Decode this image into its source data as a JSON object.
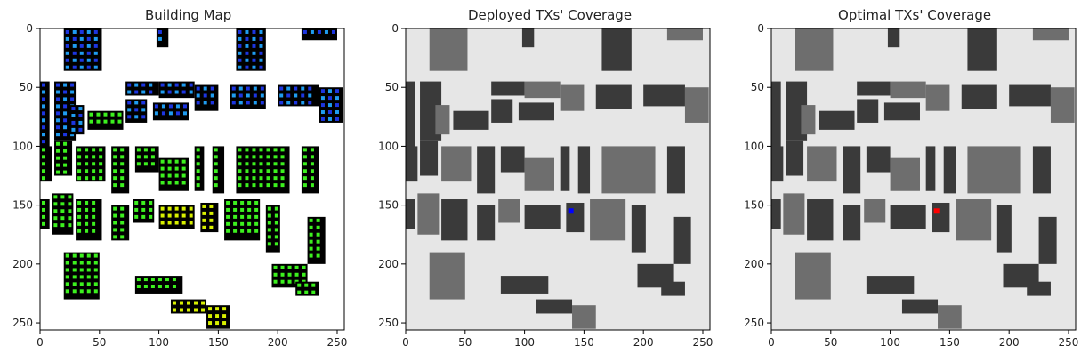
{
  "chart_data": [
    {
      "type": "heatmap",
      "title": "Building Map",
      "xlim": [
        0,
        255
      ],
      "ylim": [
        0,
        255
      ],
      "xticks": [
        0,
        50,
        100,
        150,
        200,
        250
      ],
      "yticks": [
        0,
        50,
        100,
        150,
        200,
        250
      ],
      "colors": {
        "background": "#ffffff",
        "building": "#000000",
        "marker_green": "#3cf01e",
        "marker_blue": "#1f9cf0",
        "marker_darkblue": "#1c35e0",
        "marker_yellow": "#d8f000"
      }
    },
    {
      "type": "heatmap",
      "title": "Deployed TXs' Coverage",
      "xlim": [
        0,
        255
      ],
      "ylim": [
        0,
        255
      ],
      "xticks": [
        0,
        50,
        100,
        150,
        200,
        250
      ],
      "yticks": [
        0,
        50,
        100,
        150,
        200,
        250
      ],
      "tx": [
        {
          "x": 139,
          "y": 155,
          "color": "#0000ff"
        }
      ],
      "colors": {
        "background": "#e6e6e6",
        "building_dark": "#3a3a3a",
        "building_mid": "#6e6e6e"
      }
    },
    {
      "type": "heatmap",
      "title": "Optimal TXs' Coverage",
      "xlim": [
        0,
        255
      ],
      "ylim": [
        0,
        255
      ],
      "xticks": [
        0,
        50,
        100,
        150,
        200,
        250
      ],
      "yticks": [
        0,
        50,
        100,
        150,
        200,
        250
      ],
      "tx": [
        {
          "x": 139,
          "y": 155,
          "color": "#ff0000"
        }
      ],
      "colors": {
        "background": "#e6e6e6",
        "building_dark": "#3a3a3a",
        "building_mid": "#6e6e6e"
      }
    }
  ]
}
